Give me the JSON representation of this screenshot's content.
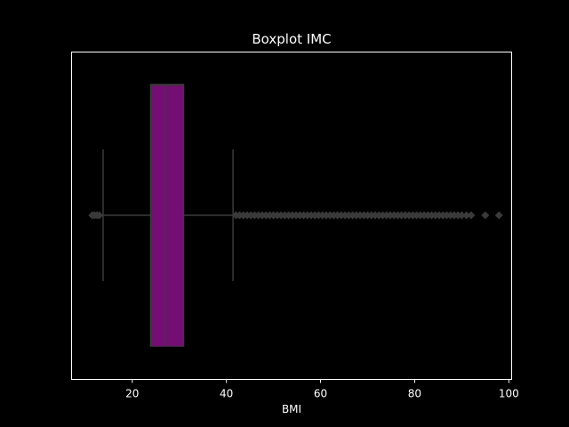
{
  "chart_data": {
    "type": "boxplot",
    "title": "Boxplot IMC",
    "xlabel": "BMI",
    "ylabel": "",
    "xlim": [
      7.1,
      100.6
    ],
    "xticks": [
      20,
      40,
      60,
      80,
      100
    ],
    "grid": false,
    "orientation": "horizontal",
    "series": [
      {
        "whisker_low": 13.8,
        "q1": 23.9,
        "median": 27.1,
        "q3": 30.9,
        "whisker_high": 41.4,
        "outliers": [
          11.5,
          12.0,
          12.5,
          13.0,
          42.0,
          42.8,
          43.6,
          44.4,
          45.2,
          46.0,
          46.8,
          47.6,
          48.4,
          49.2,
          50.0,
          50.8,
          51.6,
          52.4,
          53.2,
          54.0,
          54.8,
          55.6,
          56.4,
          57.2,
          58.0,
          58.8,
          59.6,
          60.4,
          61.2,
          62.0,
          62.8,
          63.6,
          64.4,
          65.2,
          66.0,
          66.8,
          67.6,
          68.4,
          69.2,
          70.0,
          70.8,
          71.6,
          72.4,
          73.2,
          74.0,
          74.8,
          75.6,
          76.4,
          77.2,
          78.0,
          78.8,
          79.6,
          80.4,
          81.2,
          82.0,
          82.8,
          83.6,
          84.4,
          85.2,
          86.0,
          86.8,
          87.6,
          88.4,
          89.2,
          90.0,
          91.0,
          92.0,
          95.0,
          97.9
        ]
      }
    ],
    "colors": {
      "background": "#000000",
      "box_fill": "#750E74",
      "lines": "#3a3a3a",
      "frame": "#ffffff",
      "text": "#ffffff"
    }
  }
}
